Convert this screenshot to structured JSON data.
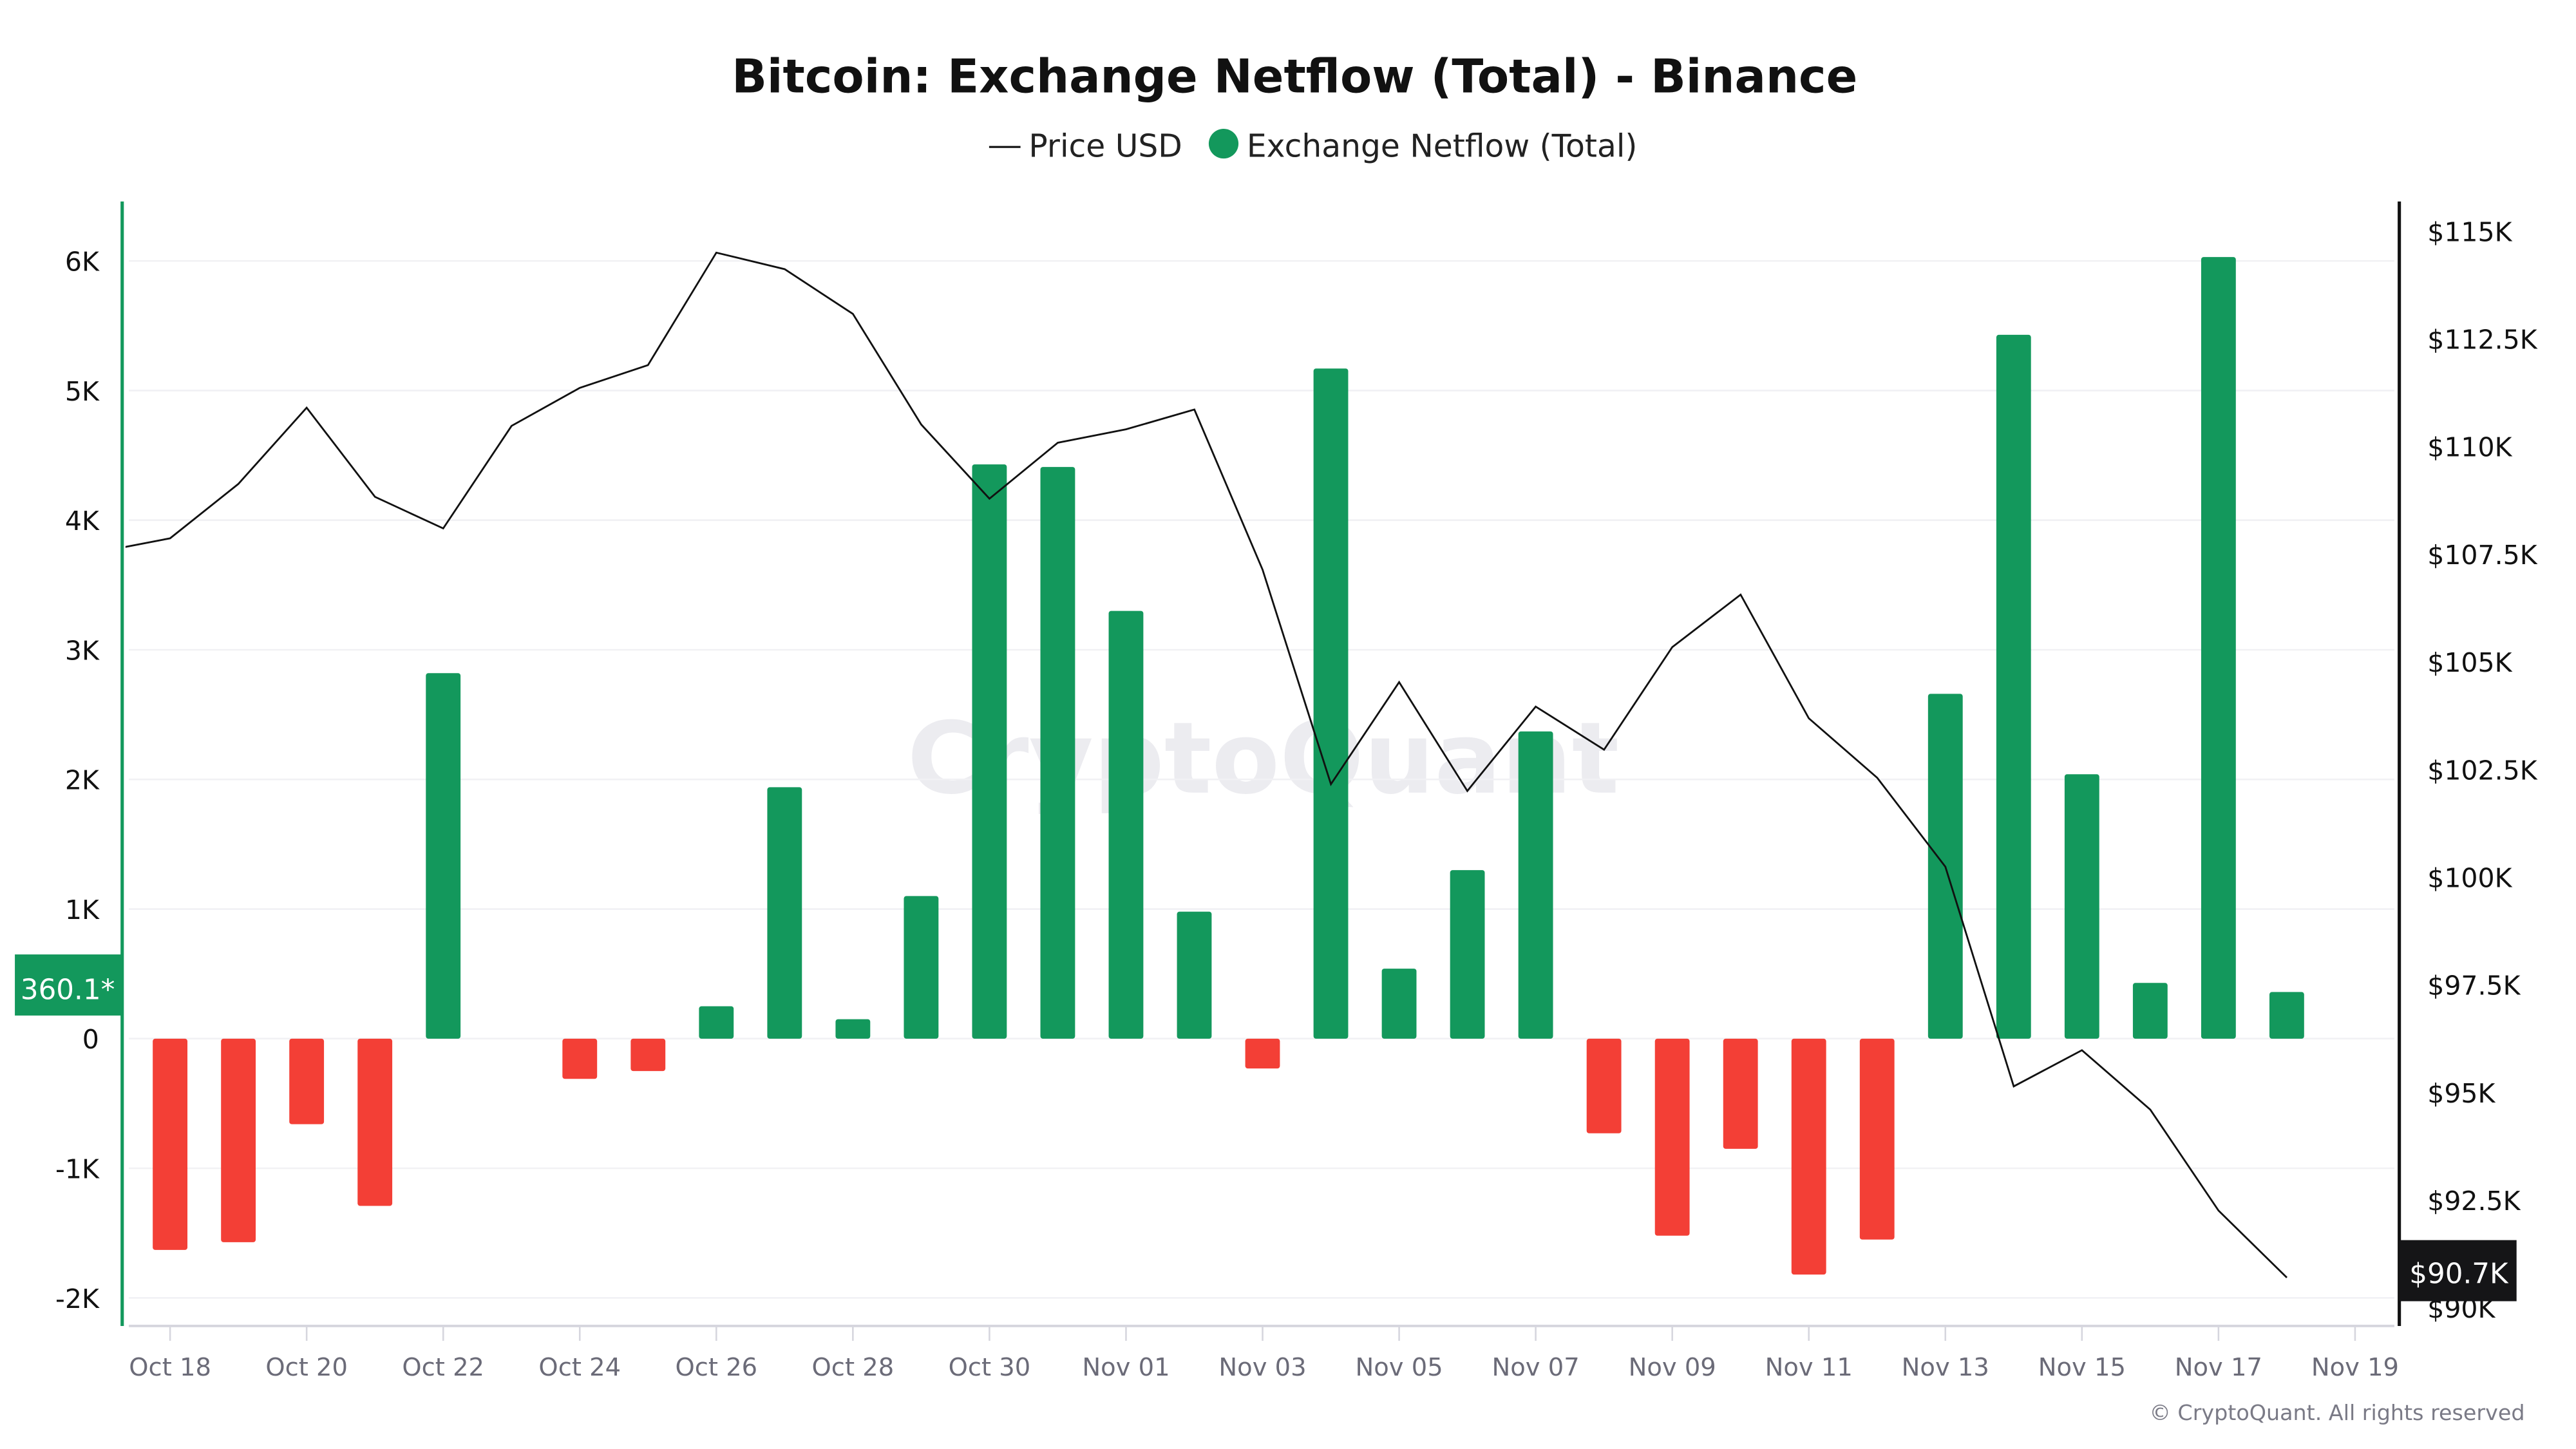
{
  "chart_data": {
    "type": "bar+line",
    "title": "Bitcoin: Exchange Netflow (Total) - Binance",
    "legend": [
      {
        "name": "Price USD",
        "marker": "line",
        "color": "#111111"
      },
      {
        "name": "Exchange Netflow (Total)",
        "marker": "dot",
        "color": "#13985c"
      }
    ],
    "legend_position": "top-center",
    "watermark": "CryptoQuant",
    "copyright": "© CryptoQuant. All rights reserved",
    "x_tick_labels": [
      "Oct 18",
      "Oct 20",
      "Oct 22",
      "Oct 24",
      "Oct 26",
      "Oct 28",
      "Oct 30",
      "Nov 01",
      "Nov 03",
      "Nov 05",
      "Nov 07",
      "Nov 09",
      "Nov 11",
      "Nov 13",
      "Nov 15",
      "Nov 17",
      "Nov 19"
    ],
    "left_axis": {
      "ticks": [
        "-2K",
        "-1K",
        "0",
        "1K",
        "2K",
        "3K",
        "4K",
        "5K",
        "6K"
      ],
      "tick_values": [
        -2000,
        -1000,
        0,
        1000,
        2000,
        3000,
        4000,
        5000,
        6000
      ],
      "color": "#13985c"
    },
    "right_axis": {
      "ticks": [
        "$90K",
        "$92.5K",
        "$95K",
        "$97.5K",
        "$100K",
        "$102.5K",
        "$105K",
        "$107.5K",
        "$110K",
        "$112.5K",
        "$115K"
      ],
      "tick_values": [
        90000,
        92500,
        95000,
        97500,
        100000,
        102500,
        105000,
        107500,
        110000,
        112500,
        115000
      ]
    },
    "grid": true,
    "colors": {
      "positive": "#13985c",
      "negative": "#f33f36",
      "price": "#111111"
    },
    "netflow": {
      "name": "Exchange Netflow (Total)",
      "dates": [
        "Oct 18",
        "Oct 19",
        "Oct 20",
        "Oct 21",
        "Oct 22",
        "Oct 23",
        "Oct 24",
        "Oct 25",
        "Oct 26",
        "Oct 27",
        "Oct 28",
        "Oct 29",
        "Oct 30",
        "Oct 31",
        "Nov 01",
        "Nov 02",
        "Nov 03",
        "Nov 04",
        "Nov 05",
        "Nov 06",
        "Nov 07",
        "Nov 08",
        "Nov 09",
        "Nov 10",
        "Nov 11",
        "Nov 12",
        "Nov 13",
        "Nov 14",
        "Nov 15",
        "Nov 16",
        "Nov 17",
        "Nov 18"
      ],
      "values": [
        -1630,
        -1570,
        -660,
        -1290,
        2820,
        0,
        -310,
        -250,
        250,
        1940,
        150,
        1100,
        4430,
        4410,
        3300,
        980,
        -230,
        5170,
        540,
        1300,
        2370,
        -730,
        -1520,
        -850,
        -1820,
        -1550,
        2660,
        5430,
        2040,
        430,
        6030,
        360.1
      ]
    },
    "price": {
      "name": "Price USD",
      "dates": [
        "Oct 17",
        "Oct 18",
        "Oct 19",
        "Oct 20",
        "Oct 21",
        "Oct 22",
        "Oct 23",
        "Oct 24",
        "Oct 25",
        "Oct 26",
        "Oct 27",
        "Oct 28",
        "Oct 29",
        "Oct 30",
        "Oct 31",
        "Nov 01",
        "Nov 02",
        "Nov 03",
        "Nov 04",
        "Nov 05",
        "Nov 06",
        "Nov 07",
        "Nov 08",
        "Nov 09",
        "Nov 10",
        "Nov 11",
        "Nov 12",
        "Nov 13",
        "Nov 14",
        "Nov 15",
        "Nov 16",
        "Nov 17",
        "Nov 18"
      ],
      "values": [
        107560,
        107870,
        109130,
        110900,
        108830,
        108100,
        110480,
        111360,
        111890,
        114500,
        114120,
        113080,
        110510,
        108790,
        110090,
        110400,
        110860,
        107140,
        102160,
        104530,
        102000,
        103960,
        102960,
        105340,
        106560,
        103690,
        102310,
        100240,
        95140,
        95980,
        94600,
        92260,
        90700
      ]
    },
    "last_netflow_label": "360.1*",
    "last_price_label": "$90.7K"
  }
}
